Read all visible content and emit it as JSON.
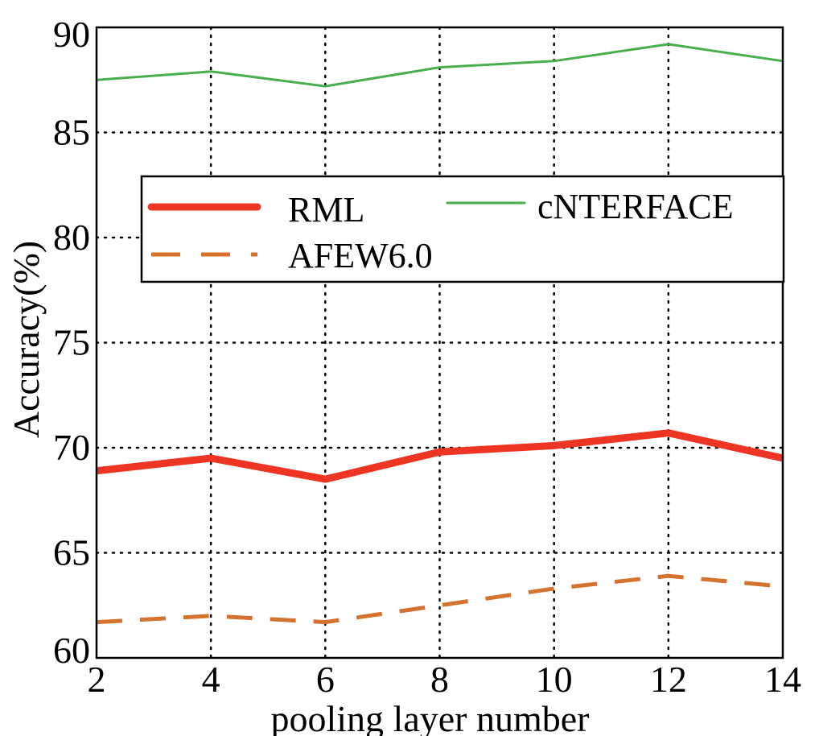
{
  "chart_data": {
    "type": "line",
    "title": "",
    "xlabel": "pooling layer number",
    "ylabel": "Accuracy(%)",
    "x": [
      2,
      4,
      6,
      8,
      10,
      12,
      14
    ],
    "xlim": [
      2,
      14
    ],
    "ylim": [
      60,
      90
    ],
    "xticks": [
      "2",
      "4",
      "6",
      "8",
      "10",
      "12",
      "14"
    ],
    "yticks": [
      "60",
      "65",
      "70",
      "75",
      "80",
      "85",
      "90"
    ],
    "grid": true,
    "legend_position": "upper-center",
    "series": [
      {
        "name": "RML",
        "values": [
          68.9,
          69.5,
          68.5,
          69.8,
          70.1,
          70.7,
          69.5
        ],
        "color": "#ee3524",
        "style": "solid-thick"
      },
      {
        "name": "cNTERFACE",
        "values": [
          87.5,
          87.9,
          87.2,
          88.1,
          88.4,
          89.2,
          88.4
        ],
        "color": "#4aae4f",
        "style": "solid-thin"
      },
      {
        "name": "AFEW6.0",
        "values": [
          61.7,
          62.0,
          61.7,
          62.5,
          63.3,
          63.9,
          63.4
        ],
        "color": "#d4722e",
        "style": "dashed"
      }
    ]
  }
}
